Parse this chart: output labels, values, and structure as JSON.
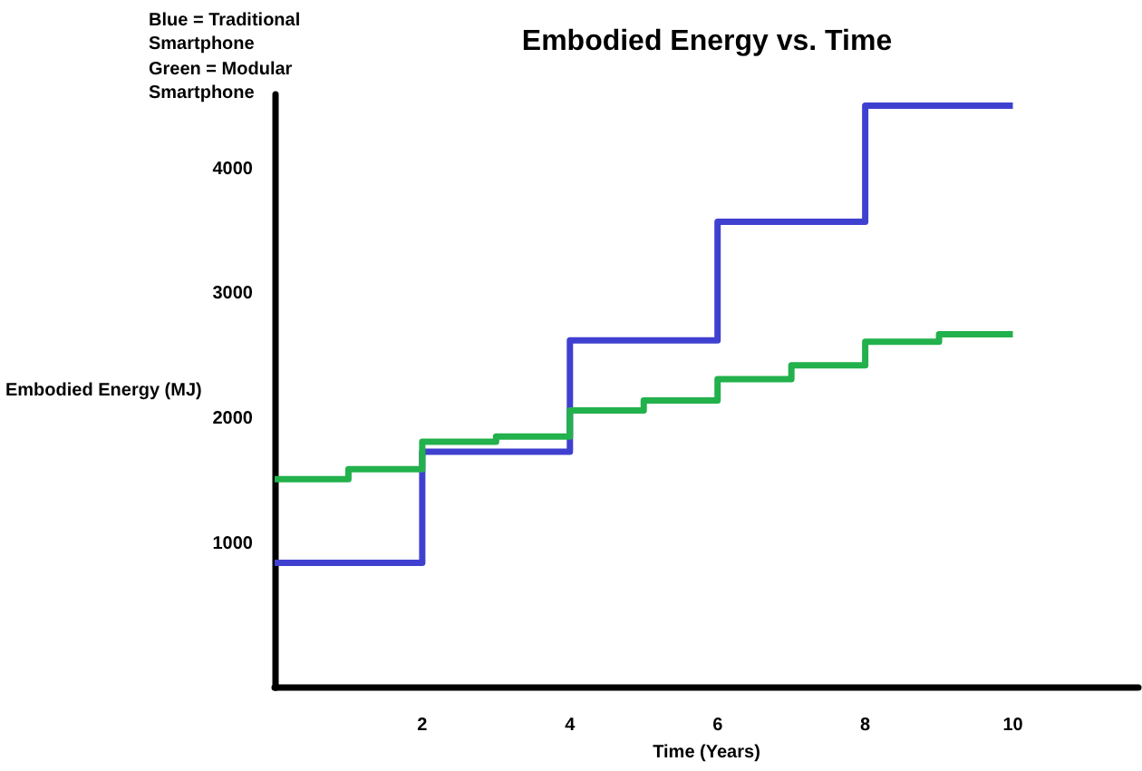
{
  "chart_data": {
    "type": "step",
    "title": "Embodied Energy vs. Time",
    "xlabel": "Time (Years)",
    "ylabel": "Embodied Energy (MJ)",
    "annotations": [
      "Blue = Traditional Smartphone",
      "Green = Modular Smartphone"
    ],
    "series": [
      {
        "color": "#4040d0",
        "x": [
          0,
          2,
          4,
          6,
          8,
          10
        ],
        "values": [
          850,
          1740,
          2630,
          3580,
          4510,
          4510
        ]
      },
      {
        "color": "#22b14c",
        "x": [
          0,
          1,
          2,
          3,
          4,
          5,
          6,
          7,
          8,
          9,
          10
        ],
        "values": [
          1520,
          1600,
          1820,
          1860,
          2070,
          2150,
          2320,
          2430,
          2620,
          2680,
          2680
        ]
      }
    ],
    "xlim": [
      0,
      11.7
    ],
    "xticks": [
      2,
      4,
      6,
      8,
      10
    ],
    "ylim": [
      -150,
      4600
    ],
    "yticks": [
      1000,
      2000,
      3000,
      4000
    ],
    "marker": "none",
    "line_style": "solid"
  }
}
